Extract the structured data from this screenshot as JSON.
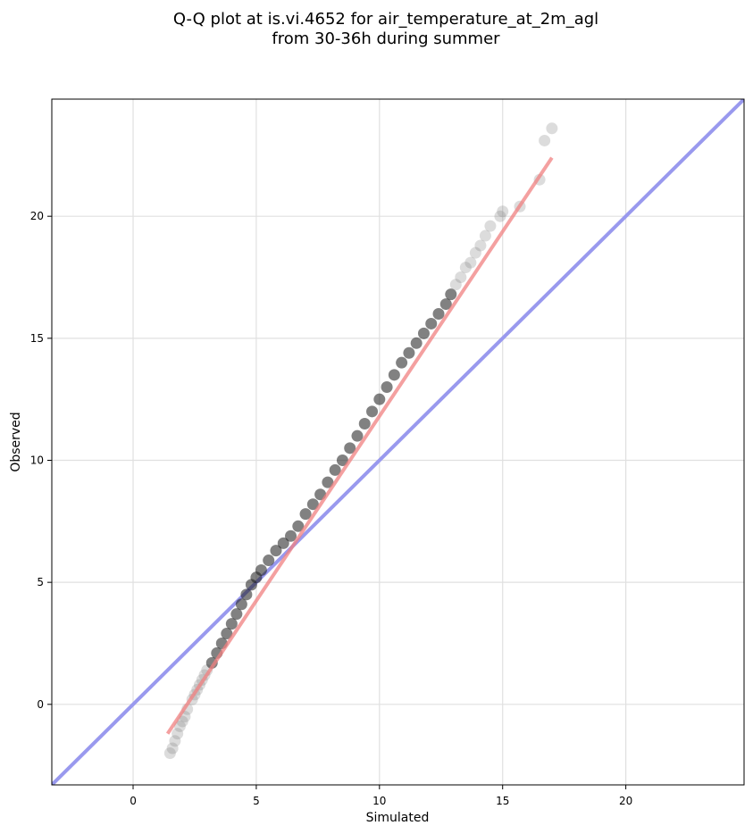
{
  "chart_data": {
    "type": "scatter",
    "title_line1": "Q-Q plot at is.vi.4652 for air_temperature_at_2m_agl",
    "title_line2": "from 30-36h during summer",
    "xlabel": "Simulated",
    "ylabel": "Observed",
    "xlim": [
      -3.3,
      24.8
    ],
    "ylim": [
      -3.3,
      24.8
    ],
    "x_ticks": [
      0,
      5,
      10,
      15,
      20
    ],
    "x_tick_labels": [
      "0",
      "5",
      "10",
      "15",
      "20"
    ],
    "y_ticks": [
      0,
      5,
      10,
      15,
      20
    ],
    "y_tick_labels": [
      "0",
      "5",
      "10",
      "15",
      "20"
    ],
    "grid": true,
    "quantile_points": {
      "x": [
        1.5,
        1.6,
        1.7,
        1.8,
        1.9,
        2.0,
        2.1,
        2.2,
        2.4,
        2.5,
        2.6,
        2.7,
        2.8,
        2.9,
        3.0,
        3.2,
        3.4,
        3.6,
        3.8,
        4.0,
        4.2,
        4.4,
        4.6,
        4.8,
        5.0,
        5.2,
        5.5,
        5.8,
        6.1,
        6.4,
        6.7,
        7.0,
        7.3,
        7.6,
        7.9,
        8.2,
        8.5,
        8.8,
        9.1,
        9.4,
        9.7,
        10.0,
        10.3,
        10.6,
        10.9,
        11.2,
        11.5,
        11.8,
        12.1,
        12.4,
        12.7,
        12.9,
        13.1,
        13.3,
        13.5,
        13.7,
        13.9,
        14.1,
        14.3,
        14.5,
        14.9,
        15.0,
        15.7,
        16.5,
        16.7,
        17.0
      ],
      "y": [
        -2.0,
        -1.8,
        -1.5,
        -1.2,
        -0.9,
        -0.7,
        -0.5,
        -0.2,
        0.2,
        0.4,
        0.6,
        0.8,
        1.0,
        1.2,
        1.4,
        1.7,
        2.1,
        2.5,
        2.9,
        3.3,
        3.7,
        4.1,
        4.5,
        4.9,
        5.2,
        5.5,
        5.9,
        6.3,
        6.6,
        6.9,
        7.3,
        7.8,
        8.2,
        8.6,
        9.1,
        9.6,
        10.0,
        10.5,
        11.0,
        11.5,
        12.0,
        12.5,
        13.0,
        13.5,
        14.0,
        14.4,
        14.8,
        15.2,
        15.6,
        16.0,
        16.4,
        16.8,
        17.2,
        17.5,
        17.9,
        18.1,
        18.5,
        18.8,
        19.2,
        19.6,
        20.0,
        20.2,
        20.4,
        21.5,
        23.1,
        23.6
      ]
    },
    "fit_line": {
      "x": [
        1.4,
        17.0
      ],
      "y": [
        -1.2,
        22.4
      ],
      "color": "#f08080"
    },
    "identity_line": {
      "x": [
        -3.3,
        24.8
      ],
      "y": [
        -3.3,
        24.8
      ],
      "color": "#9999ee"
    },
    "colors": {
      "points": "#808080",
      "dense_points": "#1a1a1a",
      "fit_line": "#f08080",
      "identity_line": "#9999ee",
      "grid": "#e0e0e0"
    }
  }
}
